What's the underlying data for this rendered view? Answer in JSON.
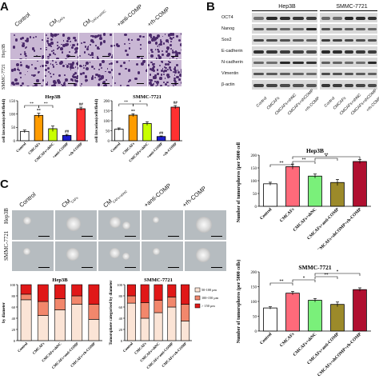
{
  "panels": {
    "A": "A",
    "B": "B",
    "C": "C"
  },
  "panel_a": {
    "column_labels": [
      "Control",
      "CM",
      "CM",
      "+anti-COMP",
      "+rh-COMP"
    ],
    "column_subscripts": [
      "",
      "CAFs",
      "CAFs+shNC",
      "",
      " "
    ],
    "row_labels": [
      "Hep3B",
      "SMMC-7721"
    ],
    "ylabel": "cell invasion(cells/field)",
    "chart_hep3b": {
      "title": "Hep3B"
    },
    "chart_smmc": {
      "title": "SMMC-7721"
    }
  },
  "panel_b": {
    "cell_lines": [
      "Hep3B",
      "SMMC-7721"
    ],
    "proteins": [
      "OCT4",
      "Nanog",
      "Sox2",
      "E-cadherin",
      "N-cadherin",
      "Vimentin",
      "β-actin"
    ],
    "lanes": [
      "Control",
      "CMCAFs",
      "CMCAFs+shNC",
      "CMCAFs+shCOMP",
      "+rh-COMP"
    ]
  },
  "panel_c": {
    "row_labels": [
      "SMMC-7721",
      "Hep3B"
    ],
    "legend": [
      "50-100 μm",
      "100-150 μm",
      "> 150 μm"
    ],
    "stack_ylabel": "Tumorsphere categorised by diameter",
    "stack_ylabel_left": "by diameter",
    "stack_titles": [
      "Hep3B",
      "SMMC-7721"
    ],
    "stack_ticks": [
      "0",
      "20",
      "40",
      "60",
      "80",
      "100"
    ]
  },
  "sphere_hep3b": {
    "title": "Hep3B",
    "ylabel": "Number of tumorspheres (per 5000 cells)"
  },
  "sphere_smmc": {
    "title": "SMMC-7721",
    "ylabel": "Number of tumorspheres (per 5000 cells)"
  },
  "xcats": [
    "Control",
    "CMCAFs",
    "CMCAFs+shNC",
    "CMCAFs+shCOMP+rh-COMP"
  ],
  "xcats5": [
    "Control",
    "CMCAFs",
    "CMCAFs+shNC",
    "CMCAFs+anti-COMP",
    "CMCAFs+shCOMP+rh-COMP"
  ],
  "chart_data": [
    {
      "type": "bar",
      "title": "Hep3B",
      "ylabel": "cell invasion(cells/field)",
      "ylim": [
        0,
        150
      ],
      "ticks": [
        "0",
        "50",
        "100",
        "150"
      ],
      "categories": [
        "Control",
        "CMCAFs",
        "CMCAFs+shNC",
        "+anti-COMP",
        "+rh-COMP"
      ],
      "values": [
        35,
        95,
        45,
        20,
        120
      ],
      "errors": [
        5,
        8,
        10,
        4,
        6
      ],
      "colors": [
        "#ffffff",
        "#ff9c00",
        "#c8ff00",
        "#1c1ccc",
        "#ff3030"
      ],
      "labels": [
        "",
        "**",
        "",
        "##",
        "##"
      ]
    },
    {
      "type": "bar",
      "title": "SMMC-7721",
      "ylabel": "cell invasion(cells/field)",
      "ylim": [
        0,
        200
      ],
      "ticks": [
        "0",
        "50",
        "100",
        "150",
        "200"
      ],
      "categories": [
        "Control",
        "CMCAFs",
        "CMCAFs+shNC",
        "+anti-COMP",
        "+rh-COMP"
      ],
      "values": [
        58,
        128,
        86,
        21,
        168
      ],
      "errors": [
        6,
        7,
        9,
        3,
        8
      ],
      "colors": [
        "#ffffff",
        "#ff9c00",
        "#c8ff00",
        "#1c1ccc",
        "#ff3030"
      ],
      "labels": [
        "",
        "**",
        "",
        "##",
        "##"
      ]
    },
    {
      "type": "bar",
      "title": "Hep3B",
      "ylabel": "Number of tumorspheres (per 5000 cells)",
      "ylim": [
        0,
        200
      ],
      "ticks": [
        "0",
        "50",
        "100",
        "150",
        "200"
      ],
      "values": [
        88,
        155,
        118,
        93,
        175
      ],
      "errors": [
        6,
        10,
        8,
        12,
        8
      ],
      "colors": [
        "#ffffff",
        "#ff6a7a",
        "#7af07a",
        "#9c8a2a",
        "#b01030"
      ],
      "sig": [
        "**",
        "**",
        "*",
        "**"
      ]
    },
    {
      "type": "bar",
      "title": "SMMC-7721",
      "ylabel": "Number of tumorspheres (per 5000 cells)",
      "ylim": [
        0,
        200
      ],
      "ticks": [
        "0",
        "50",
        "100",
        "150",
        "200"
      ],
      "values": [
        78,
        128,
        104,
        90,
        140
      ],
      "errors": [
        4,
        6,
        6,
        8,
        6
      ],
      "colors": [
        "#ffffff",
        "#ff6a7a",
        "#7af07a",
        "#9c8a2a",
        "#b01030"
      ],
      "sig": [
        "**",
        "*",
        "**",
        "*"
      ]
    },
    {
      "type": "bar",
      "stacked": true,
      "title": "Hep3B",
      "ylim": [
        0,
        100
      ],
      "series": [
        {
          "name": "50-100 μm",
          "color": "#fbe4d6",
          "values": [
            73,
            45,
            55,
            65,
            38
          ]
        },
        {
          "name": "100-150 μm",
          "color": "#f2876c",
          "values": [
            10,
            25,
            20,
            15,
            27
          ]
        },
        {
          "name": "> 150 μm",
          "color": "#e01818",
          "values": [
            17,
            30,
            25,
            20,
            35
          ]
        }
      ]
    },
    {
      "type": "bar",
      "stacked": true,
      "title": "SMMC-7721",
      "ylim": [
        0,
        100
      ],
      "series": [
        {
          "name": "50-100 μm",
          "color": "#fbe4d6",
          "values": [
            67,
            40,
            50,
            60,
            35
          ]
        },
        {
          "name": "100-150 μm",
          "color": "#f2876c",
          "values": [
            13,
            28,
            22,
            18,
            30
          ]
        },
        {
          "name": "> 150 μm",
          "color": "#e01818",
          "values": [
            20,
            32,
            28,
            22,
            35
          ]
        }
      ]
    }
  ]
}
